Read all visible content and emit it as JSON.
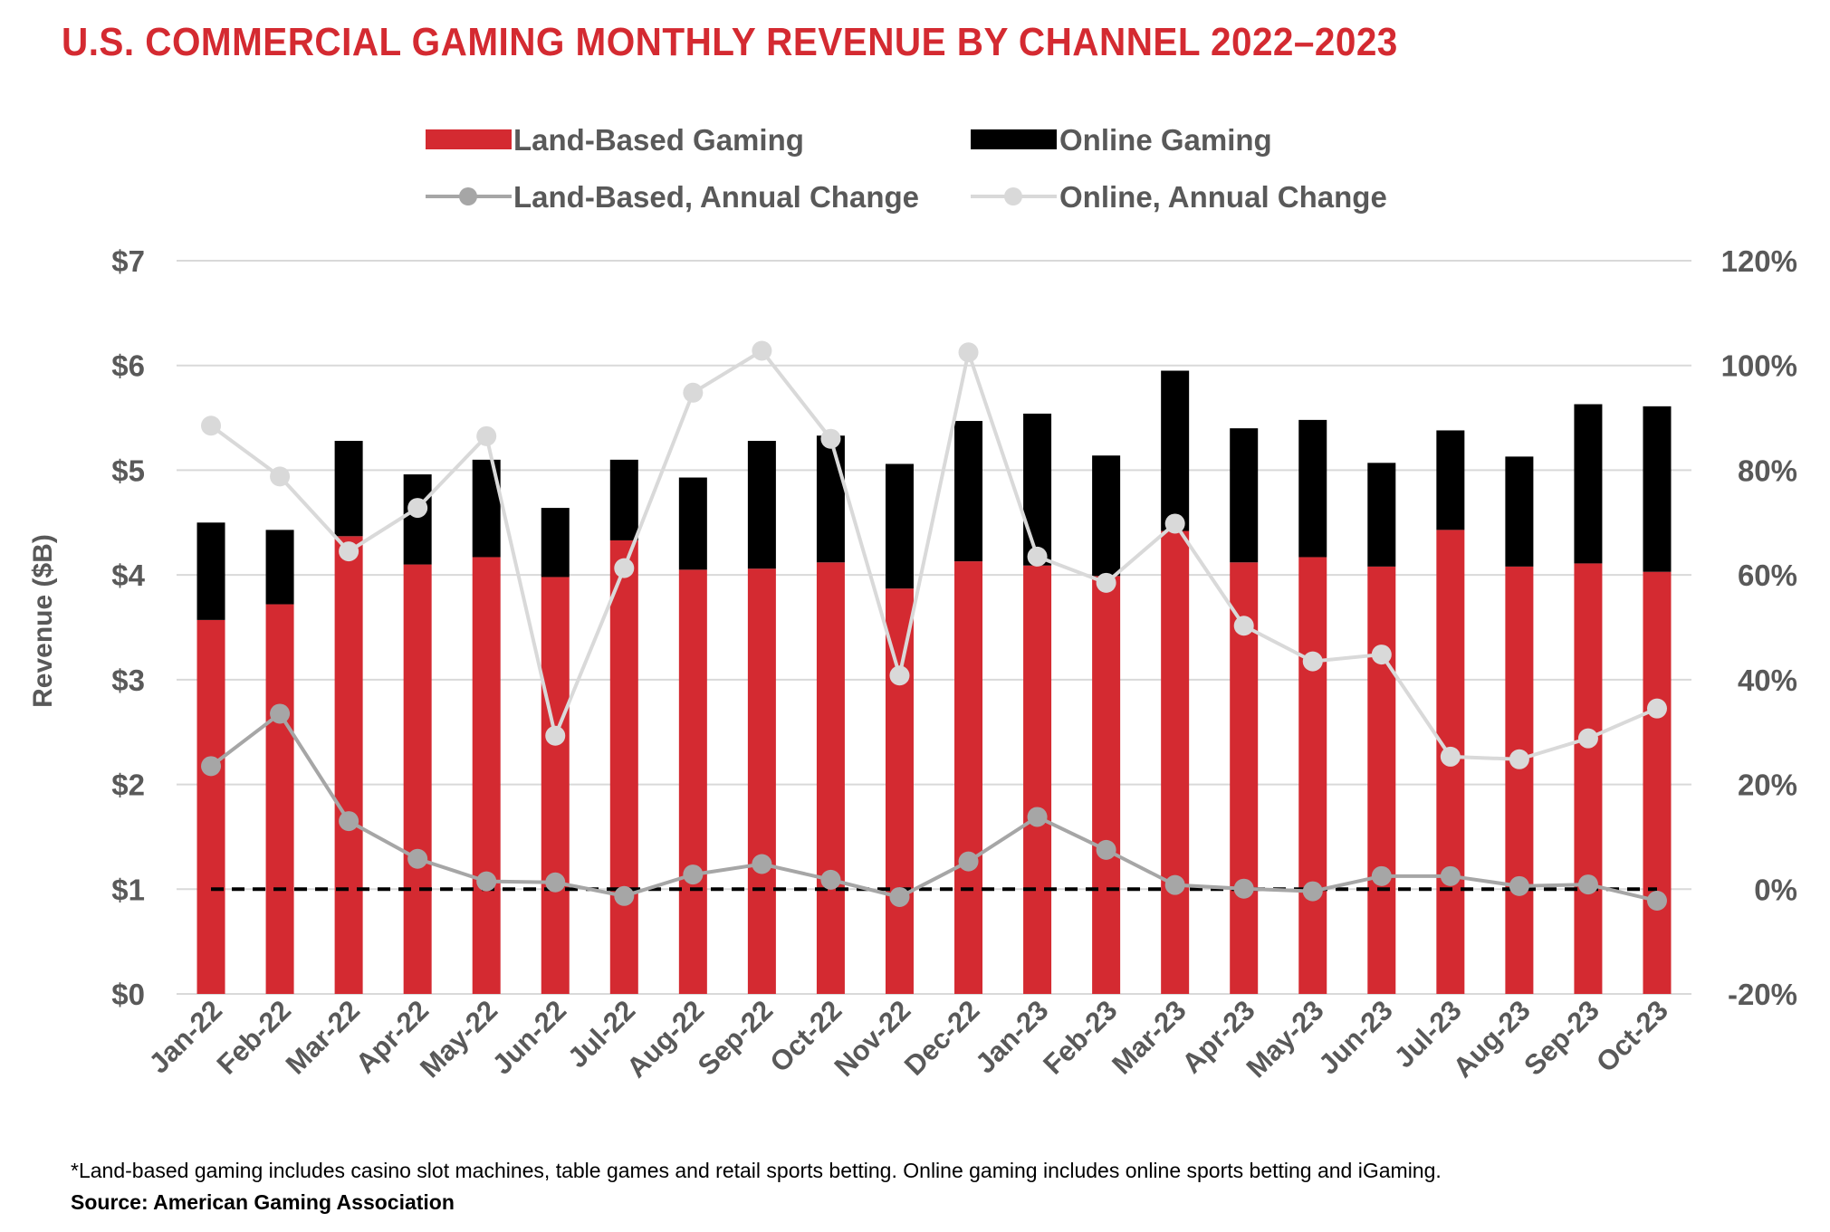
{
  "title": "U.S. COMMERCIAL GAMING MONTHLY REVENUE BY CHANNEL 2022–2023",
  "footnote": "*Land-based gaming includes casino slot machines, table games and retail sports betting. Online gaming includes online sports betting and iGaming.",
  "source": "Source: American Gaming Association",
  "colors": {
    "land_based": "#d42a31",
    "online": "#000000",
    "land_change": "#a6a6a6",
    "online_change": "#d9d9d9",
    "grid": "#d9d9d9",
    "tick_text": "#595959",
    "title": "#d42a31"
  },
  "chart_data": {
    "type": "bar",
    "stacked": true,
    "title": "U.S. COMMERCIAL GAMING MONTHLY REVENUE BY CHANNEL 2022–2023",
    "ylabel": "Revenue ($B)",
    "ylim": [
      0,
      7
    ],
    "y_ticks": [
      "$0",
      "$1",
      "$2",
      "$3",
      "$4",
      "$5",
      "$6",
      "$7"
    ],
    "y2lim": [
      -20,
      120
    ],
    "y2_ticks": [
      "-20%",
      "0%",
      "20%",
      "40%",
      "60%",
      "80%",
      "100%",
      "120%"
    ],
    "grid": true,
    "legend_position": "top",
    "categories": [
      "Jan-22",
      "Feb-22",
      "Mar-22",
      "Apr-22",
      "May-22",
      "Jun-22",
      "Jul-22",
      "Aug-22",
      "Sep-22",
      "Oct-22",
      "Nov-22",
      "Dec-22",
      "Jan-23",
      "Feb-23",
      "Mar-23",
      "Apr-23",
      "May-23",
      "Jun-23",
      "Jul-23",
      "Aug-23",
      "Sep-23",
      "Oct-23"
    ],
    "series": [
      {
        "name": "Land-Based Gaming",
        "type": "bar",
        "axis": "left",
        "values": [
          3.57,
          3.72,
          4.37,
          4.1,
          4.17,
          3.98,
          4.33,
          4.05,
          4.06,
          4.12,
          3.87,
          4.13,
          4.09,
          3.99,
          4.42,
          4.12,
          4.17,
          4.08,
          4.43,
          4.08,
          4.11,
          4.03
        ]
      },
      {
        "name": "Online Gaming",
        "type": "bar",
        "axis": "left",
        "values": [
          0.93,
          0.71,
          0.91,
          0.86,
          0.93,
          0.66,
          0.77,
          0.88,
          1.22,
          1.21,
          1.19,
          1.34,
          1.45,
          1.15,
          1.53,
          1.28,
          1.31,
          0.99,
          0.95,
          1.05,
          1.52,
          1.58
        ]
      },
      {
        "name": "Land-Based, Annual Change",
        "type": "line",
        "axis": "right",
        "values": [
          23.5,
          33.5,
          13,
          5.8,
          1.5,
          1.3,
          -1.3,
          2.8,
          4.8,
          1.8,
          -1.5,
          5.3,
          13.8,
          7.5,
          0.8,
          0.1,
          -0.4,
          2.5,
          2.5,
          0.6,
          0.9,
          -2.2
        ]
      },
      {
        "name": "Online, Annual Change",
        "type": "line",
        "axis": "right",
        "values": [
          88.5,
          78.8,
          64.5,
          72.8,
          86.5,
          29.3,
          61.3,
          94.8,
          102.8,
          86,
          40.8,
          102.5,
          63.5,
          58.5,
          69.8,
          50.3,
          43.5,
          44.8,
          25.3,
          24.8,
          28.8,
          34.5
        ]
      }
    ],
    "reference_line": {
      "axis": "right",
      "value": 0,
      "style": "dashed"
    }
  }
}
